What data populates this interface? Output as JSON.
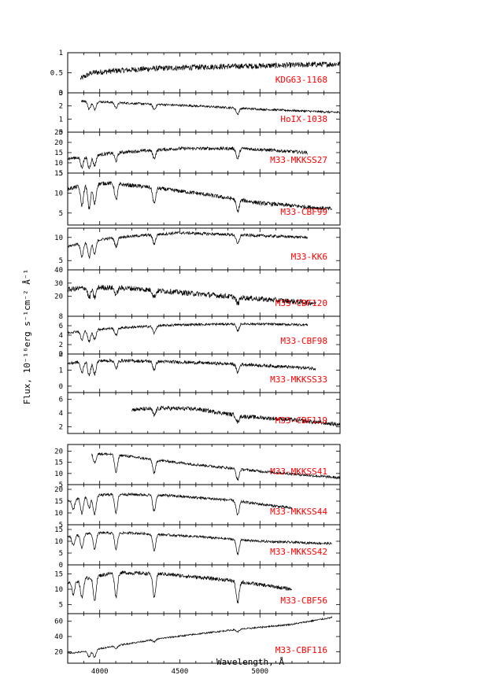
{
  "chart_data": {
    "type": "line",
    "xlabel": "Wavelength, Å",
    "ylabel": "Flux, 10⁻¹⁶erg s⁻¹cm⁻² Å⁻¹",
    "xlim": [
      3800,
      5500
    ],
    "xticks": [
      4000,
      4500,
      5000
    ],
    "groups": [
      {
        "panels": [
          {
            "name": "KDG63-1168",
            "ylim": [
              0,
              1
            ],
            "yticks": [
              "0",
              "0.5",
              "1"
            ],
            "yvals": [
              0,
              0.5,
              1
            ],
            "x_start": 3880,
            "x_end": 5500,
            "profile": [
              [
                3880,
                0.35
              ],
              [
                3950,
                0.5
              ],
              [
                4100,
                0.55
              ],
              [
                4300,
                0.6
              ],
              [
                4700,
                0.65
              ],
              [
                5100,
                0.68
              ],
              [
                5500,
                0.72
              ]
            ],
            "noise": 0.07,
            "lines": []
          },
          {
            "name": "HoIX-1038",
            "ylim": [
              0,
              3
            ],
            "yticks": [
              "0",
              "1",
              "2",
              "3"
            ],
            "yvals": [
              0,
              1,
              2,
              3
            ],
            "x_start": 3885,
            "x_end": 5500,
            "profile": [
              [
                3885,
                2.4
              ],
              [
                3950,
                2.35
              ],
              [
                4200,
                2.2
              ],
              [
                4600,
                2.0
              ],
              [
                5000,
                1.75
              ],
              [
                5500,
                1.5
              ]
            ],
            "noise": 0.08,
            "lines": [
              [
                3934,
                0.6
              ],
              [
                3968,
                0.6
              ],
              [
                4102,
                0.4
              ],
              [
                4340,
                0.4
              ],
              [
                4861,
                0.45
              ]
            ]
          },
          {
            "name": "M33-MKKSS27",
            "ylim": [
              5,
              25
            ],
            "yticks": [
              "5",
              "10",
              "15",
              "20",
              "25"
            ],
            "yvals": [
              5,
              10,
              15,
              20,
              25
            ],
            "x_start": 3800,
            "x_end": 5300,
            "profile": [
              [
                3800,
                12
              ],
              [
                3900,
                13
              ],
              [
                4100,
                15
              ],
              [
                4500,
                17
              ],
              [
                4900,
                17
              ],
              [
                5300,
                15
              ]
            ],
            "noise": 0.8,
            "lines": [
              [
                3889,
                5
              ],
              [
                3934,
                6
              ],
              [
                3968,
                5
              ],
              [
                4102,
                4
              ],
              [
                4340,
                4
              ],
              [
                4861,
                5
              ]
            ]
          },
          {
            "name": "M33-CBF99",
            "ylim": [
              2,
              15
            ],
            "yticks": [
              "5",
              "10",
              "15"
            ],
            "yvals": [
              5,
              10,
              15
            ],
            "x_start": 3800,
            "x_end": 5450,
            "profile": [
              [
                3800,
                11
              ],
              [
                3900,
                12
              ],
              [
                4050,
                12.5
              ],
              [
                4300,
                11.5
              ],
              [
                4600,
                10
              ],
              [
                5000,
                7.5
              ],
              [
                5450,
                6
              ]
            ],
            "noise": 0.5,
            "lines": [
              [
                3889,
                5
              ],
              [
                3934,
                6
              ],
              [
                3968,
                5
              ],
              [
                4102,
                4
              ],
              [
                4340,
                4
              ],
              [
                4861,
                3
              ]
            ]
          }
        ]
      },
      {
        "panels": [
          {
            "name": "M33-KK6",
            "ylim": [
              3,
              12
            ],
            "yticks": [
              "5",
              "10"
            ],
            "yvals": [
              5,
              10
            ],
            "x_start": 3800,
            "x_end": 5300,
            "profile": [
              [
                3800,
                8
              ],
              [
                3900,
                9
              ],
              [
                4100,
                10
              ],
              [
                4500,
                11
              ],
              [
                4900,
                10.5
              ],
              [
                5300,
                10
              ]
            ],
            "noise": 0.3,
            "lines": [
              [
                3889,
                3
              ],
              [
                3934,
                3.5
              ],
              [
                3968,
                3
              ],
              [
                4102,
                2
              ],
              [
                4340,
                2
              ],
              [
                4861,
                2
              ]
            ]
          },
          {
            "name": "M33-CBF120",
            "ylim": [
              5,
              40
            ],
            "yticks": [
              "20",
              "30",
              "40"
            ],
            "yvals": [
              20,
              30,
              40
            ],
            "x_start": 3800,
            "x_end": 5350,
            "profile": [
              [
                3800,
                25
              ],
              [
                3950,
                27
              ],
              [
                4200,
                26
              ],
              [
                4600,
                22
              ],
              [
                5000,
                18
              ],
              [
                5350,
                15
              ]
            ],
            "noise": 2.0,
            "lines": [
              [
                3934,
                8
              ],
              [
                3968,
                8
              ],
              [
                4102,
                5
              ],
              [
                4340,
                5
              ],
              [
                4861,
                5
              ]
            ]
          },
          {
            "name": "M33-CBF98",
            "ylim": [
              0,
              8
            ],
            "yticks": [
              "0",
              "2",
              "4",
              "6",
              "8"
            ],
            "yvals": [
              0,
              2,
              4,
              6,
              8
            ],
            "x_start": 3800,
            "x_end": 5300,
            "profile": [
              [
                3800,
                4.5
              ],
              [
                3900,
                5
              ],
              [
                4100,
                5.5
              ],
              [
                4500,
                6.2
              ],
              [
                4900,
                6.4
              ],
              [
                5300,
                6.2
              ]
            ],
            "noise": 0.25,
            "lines": [
              [
                3889,
                2
              ],
              [
                3934,
                2.5
              ],
              [
                3968,
                2
              ],
              [
                4102,
                1.5
              ],
              [
                4340,
                1.5
              ],
              [
                4861,
                1.5
              ]
            ]
          },
          {
            "name": "M33-MKKSS33",
            "ylim": [
              -0.4,
              2
            ],
            "yticks": [
              "0",
              "1",
              "2"
            ],
            "yvals": [
              0,
              1,
              2
            ],
            "x_start": 3800,
            "x_end": 5350,
            "profile": [
              [
                3800,
                1.4
              ],
              [
                3900,
                1.55
              ],
              [
                4100,
                1.6
              ],
              [
                4500,
                1.5
              ],
              [
                4900,
                1.35
              ],
              [
                5350,
                1.1
              ]
            ],
            "noise": 0.1,
            "lines": [
              [
                3889,
                0.7
              ],
              [
                3934,
                0.9
              ],
              [
                3968,
                0.8
              ],
              [
                4102,
                0.5
              ],
              [
                4340,
                0.5
              ],
              [
                4861,
                0.5
              ]
            ]
          },
          {
            "name": "M33-CBF119",
            "ylim": [
              1,
              7
            ],
            "yticks": [
              "2",
              "4",
              "6"
            ],
            "yvals": [
              2,
              4,
              6
            ],
            "x_start": 4200,
            "x_end": 5500,
            "profile": [
              [
                4200,
                4.5
              ],
              [
                4400,
                4.7
              ],
              [
                4600,
                4.6
              ],
              [
                4900,
                3.5
              ],
              [
                5200,
                3
              ],
              [
                5500,
                2.3
              ]
            ],
            "noise": 0.3,
            "lines": [
              [
                4340,
                1
              ],
              [
                4861,
                1
              ]
            ]
          }
        ]
      },
      {
        "panels": [
          {
            "name": "M33-MKKSS41",
            "ylim": [
              5,
              23
            ],
            "yticks": [
              "5",
              "10",
              "15",
              "20"
            ],
            "yvals": [
              5,
              10,
              15,
              20
            ],
            "x_start": 3950,
            "x_end": 5500,
            "profile": [
              [
                3950,
                19
              ],
              [
                4100,
                18.5
              ],
              [
                4300,
                16.5
              ],
              [
                4600,
                14
              ],
              [
                5000,
                11
              ],
              [
                5500,
                8
              ]
            ],
            "noise": 0.6,
            "lines": [
              [
                3968,
                4
              ],
              [
                4102,
                8
              ],
              [
                4340,
                6
              ],
              [
                4861,
                5
              ]
            ]
          },
          {
            "name": "M33-MKKSS44",
            "ylim": [
              5,
              22
            ],
            "yticks": [
              "5",
              "10",
              "15",
              "20"
            ],
            "yvals": [
              5,
              10,
              15,
              20
            ],
            "x_start": 3800,
            "x_end": 5200,
            "profile": [
              [
                3800,
                15
              ],
              [
                3900,
                17
              ],
              [
                4100,
                18
              ],
              [
                4400,
                17.5
              ],
              [
                4800,
                15.5
              ],
              [
                5200,
                12
              ]
            ],
            "noise": 0.6,
            "lines": [
              [
                3835,
                4
              ],
              [
                3889,
                7
              ],
              [
                3934,
                5
              ],
              [
                3968,
                8
              ],
              [
                4102,
                8
              ],
              [
                4340,
                7
              ],
              [
                4861,
                6
              ]
            ]
          },
          {
            "name": "M33-MKKSS42",
            "ylim": [
              0,
              17
            ],
            "yticks": [
              "0",
              "5",
              "10",
              "15"
            ],
            "yvals": [
              0,
              5,
              10,
              15
            ],
            "x_start": 3800,
            "x_end": 5450,
            "profile": [
              [
                3800,
                12
              ],
              [
                3950,
                13.5
              ],
              [
                4200,
                13.5
              ],
              [
                4600,
                12
              ],
              [
                5000,
                10
              ],
              [
                5450,
                9
              ]
            ],
            "noise": 0.5,
            "lines": [
              [
                3835,
                4
              ],
              [
                3889,
                6
              ],
              [
                3968,
                7
              ],
              [
                4102,
                7
              ],
              [
                4340,
                7
              ],
              [
                4861,
                6
              ]
            ]
          },
          {
            "name": "M33-CBF56",
            "ylim": [
              2,
              18
            ],
            "yticks": [
              "5",
              "10",
              "15"
            ],
            "yvals": [
              5,
              10,
              15
            ],
            "x_start": 3800,
            "x_end": 5200,
            "profile": [
              [
                3800,
                12
              ],
              [
                3950,
                14
              ],
              [
                4100,
                15.5
              ],
              [
                4400,
                15
              ],
              [
                4800,
                13
              ],
              [
                5200,
                10
              ]
            ],
            "noise": 0.6,
            "lines": [
              [
                3835,
                4
              ],
              [
                3889,
                6
              ],
              [
                3968,
                8
              ],
              [
                4102,
                8
              ],
              [
                4340,
                8
              ],
              [
                4861,
                7
              ]
            ]
          },
          {
            "name": "M33-CBF116",
            "ylim": [
              5,
              70
            ],
            "yticks": [
              "20",
              "40",
              "60"
            ],
            "yvals": [
              20,
              40,
              60
            ],
            "x_start": 3800,
            "x_end": 5450,
            "profile": [
              [
                3800,
                18
              ],
              [
                3900,
                20
              ],
              [
                4100,
                28
              ],
              [
                4400,
                38
              ],
              [
                4800,
                48
              ],
              [
                5200,
                56
              ],
              [
                5450,
                65
              ]
            ],
            "noise": 1.0,
            "lines": [
              [
                3934,
                8
              ],
              [
                3968,
                10
              ],
              [
                4102,
                4
              ],
              [
                4340,
                3
              ],
              [
                4861,
                3
              ]
            ]
          }
        ]
      }
    ]
  }
}
